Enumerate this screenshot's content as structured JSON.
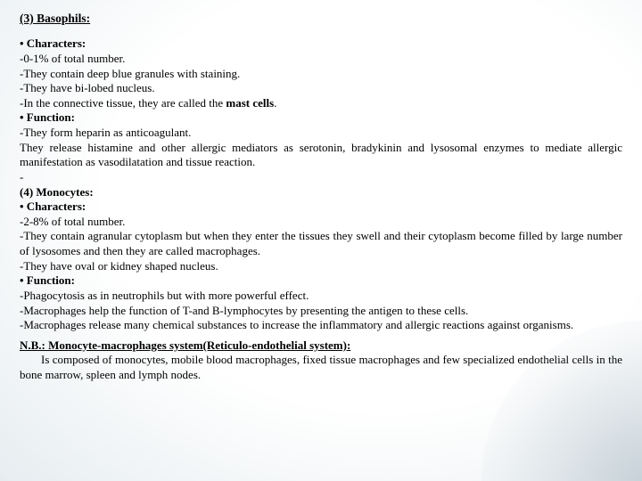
{
  "slide": {
    "section3": {
      "title": "(3) Basophils:",
      "chars_heading": "• Characters:",
      "c1": "-0-1% of total number.",
      "c2": "-They contain deep blue granules with staining.",
      "c3": "-They have bi-lobed nucleus.",
      "c4_prefix": "-In the connective tissue, they are called the ",
      "c4_bold": "mast cells",
      "c4_suffix": ".",
      "func_heading": "• Function:",
      "f1": "-They form heparin as anticoagulant.",
      "f2": "They release histamine and other allergic mediators as serotonin, bradykinin and lysosomal enzymes to mediate allergic manifestation as vasodilatation and tissue reaction.",
      "dash": "-"
    },
    "section4": {
      "title": "(4) Monocytes:",
      "chars_heading": "• Characters:",
      "c1": "-2-8% of total number.",
      "c2": "-They contain agranular cytoplasm but when they enter the tissues they swell and their cytoplasm become filled by large number of lysosomes and then they are called macrophages.",
      "c3": "-They have oval or kidney shaped nucleus.",
      "func_heading": "• Function:",
      "f1": "-Phagocytosis as in neutrophils but with more powerful effect.",
      "f2": "-Macrophages help the function of T-and B-lymphocytes by presenting the antigen to these cells.",
      "f3": "-Macrophages release many chemical substances to increase the inflammatory and allergic reactions against organisms."
    },
    "nb": {
      "label": "N.B.: Monocyte-macrophages system(Reticulo-endothelial system):",
      "body_prefix": "Is composed of monocytes, mobile blood macrophages, fixed tissue macrophages and few specialized endothelial cells in the bone marrow, spleen and lymph nodes."
    }
  }
}
